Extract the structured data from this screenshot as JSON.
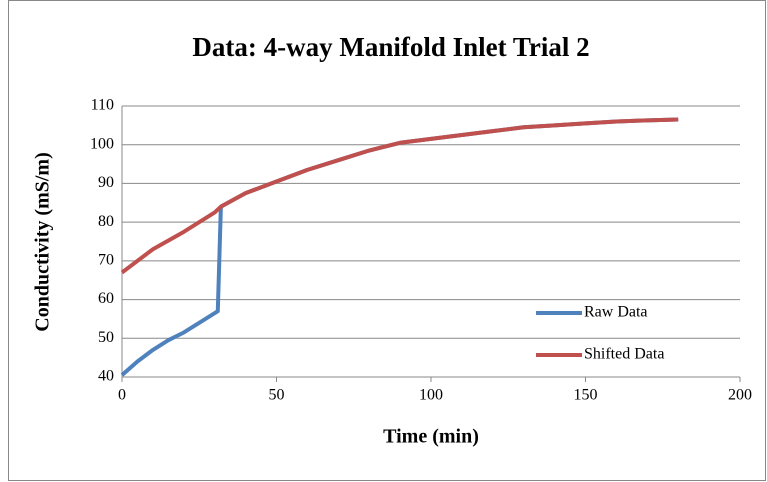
{
  "chart_data": {
    "type": "line",
    "title": "Data: 4-way Manifold Inlet Trial 2",
    "xlabel": "Time (min)",
    "ylabel": "Conductivity (mS/m)",
    "series": [
      {
        "name": "Raw Data",
        "color": "#4f81bd",
        "x": [
          0,
          5,
          10,
          15,
          20,
          25,
          31,
          32,
          40,
          50,
          60,
          70,
          80,
          90,
          100,
          110,
          120,
          130,
          140,
          150,
          160,
          170,
          180
        ],
        "values": [
          40.5,
          44,
          47,
          49.5,
          51.5,
          54,
          57,
          84,
          87.5,
          90.5,
          93.5,
          96,
          98.5,
          100.5,
          101.5,
          102.5,
          103.5,
          104.5,
          105,
          105.5,
          106,
          106.3,
          106.5
        ]
      },
      {
        "name": "Shifted Data",
        "color": "#c0504d",
        "x": [
          0,
          10,
          20,
          30,
          32,
          40,
          50,
          60,
          70,
          80,
          90,
          100,
          110,
          120,
          130,
          140,
          150,
          160,
          170,
          180
        ],
        "values": [
          67,
          73,
          77.5,
          82.5,
          84,
          87.5,
          90.5,
          93.5,
          96,
          98.5,
          100.5,
          101.5,
          102.5,
          103.5,
          104.5,
          105,
          105.5,
          106,
          106.3,
          106.5
        ]
      }
    ],
    "xlim": [
      0,
      200
    ],
    "xticks": [
      0,
      50,
      100,
      150,
      200
    ],
    "ylim": [
      40,
      110
    ],
    "yticks": [
      40,
      50,
      60,
      70,
      80,
      90,
      100,
      110
    ],
    "grid": true,
    "legend": "lower right"
  }
}
